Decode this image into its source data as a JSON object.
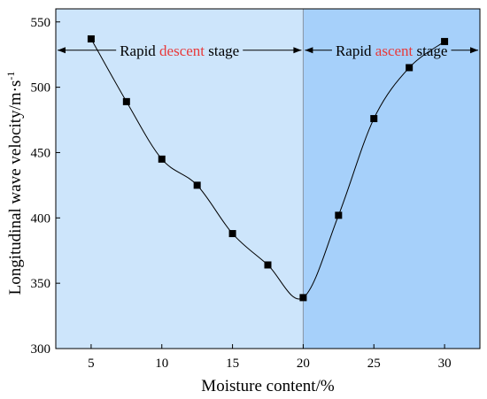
{
  "chart_data": {
    "type": "line",
    "xlabel": "Moisture content/%",
    "ylabel": {
      "text": "Longitudinal wave velocity/m·s",
      "superscript": "-1"
    },
    "xlim": [
      2.5,
      32.5
    ],
    "ylim": [
      300,
      560
    ],
    "xticks": [
      5,
      10,
      15,
      20,
      25,
      30
    ],
    "yticks": [
      300,
      350,
      400,
      450,
      500,
      550
    ],
    "grid": false,
    "series": [
      {
        "marker": "square",
        "color": "#000000",
        "x": [
          5,
          7.5,
          10,
          12.5,
          15,
          17.5,
          20,
          22.5,
          25,
          27.5,
          30
        ],
        "y": [
          537,
          489,
          445,
          425,
          388,
          364,
          339,
          402,
          476,
          515,
          535
        ]
      }
    ],
    "regions": [
      {
        "x_range": [
          2.5,
          20
        ],
        "color": "#cde5fb"
      },
      {
        "x_range": [
          20,
          32.5
        ],
        "color": "#a6d0fa"
      }
    ],
    "divider_x": 20,
    "annotations": [
      {
        "id": "descent",
        "y": 550,
        "x_range": [
          2.5,
          20
        ],
        "parts": [
          {
            "text": "Rapid ",
            "color": "#000000"
          },
          {
            "text": "descent",
            "color": "#e8393a"
          },
          {
            "text": " stage",
            "color": "#000000"
          }
        ]
      },
      {
        "id": "ascent",
        "y": 550,
        "x_range": [
          20,
          32.5
        ],
        "parts": [
          {
            "text": "Rapid ",
            "color": "#000000"
          },
          {
            "text": "ascent",
            "color": "#e8393a"
          },
          {
            "text": " stage",
            "color": "#000000"
          }
        ]
      }
    ]
  }
}
